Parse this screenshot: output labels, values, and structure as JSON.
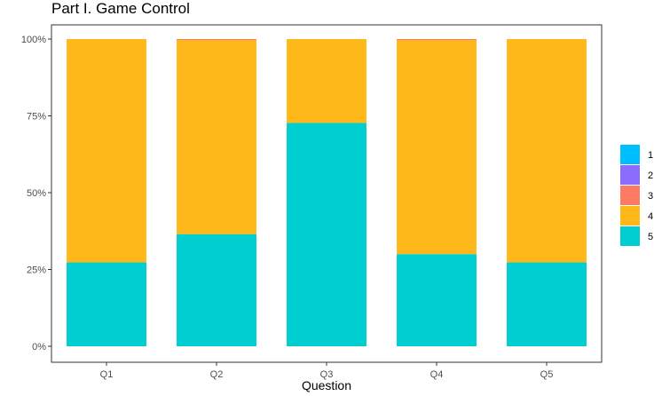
{
  "chart_data": {
    "type": "bar",
    "stacked": true,
    "normalized": true,
    "title": "Part I. Game Control",
    "xlabel": "Question",
    "ylabel": "",
    "categories": [
      "Q1",
      "Q2",
      "Q3",
      "Q4",
      "Q5"
    ],
    "yticks": [
      "0%",
      "25%",
      "50%",
      "75%",
      "100%"
    ],
    "ylim": [
      0,
      1
    ],
    "grid": false,
    "legend_position": "right",
    "series": [
      {
        "name": "1",
        "color": "#00BFFF",
        "values": [
          0.0,
          0.0,
          0.0,
          0.0,
          0.0
        ]
      },
      {
        "name": "2",
        "color": "#8B6CFF",
        "values": [
          0.0,
          0.0,
          0.0,
          0.0,
          0.0
        ]
      },
      {
        "name": "3",
        "color": "#FF7A63",
        "values": [
          0.0,
          0.003,
          0.0,
          0.003,
          0.0
        ]
      },
      {
        "name": "4",
        "color": "#FFB81A",
        "values": [
          0.727,
          0.632,
          0.273,
          0.697,
          0.727
        ]
      },
      {
        "name": "5",
        "color": "#00CED1",
        "values": [
          0.273,
          0.365,
          0.727,
          0.3,
          0.273
        ]
      }
    ]
  }
}
